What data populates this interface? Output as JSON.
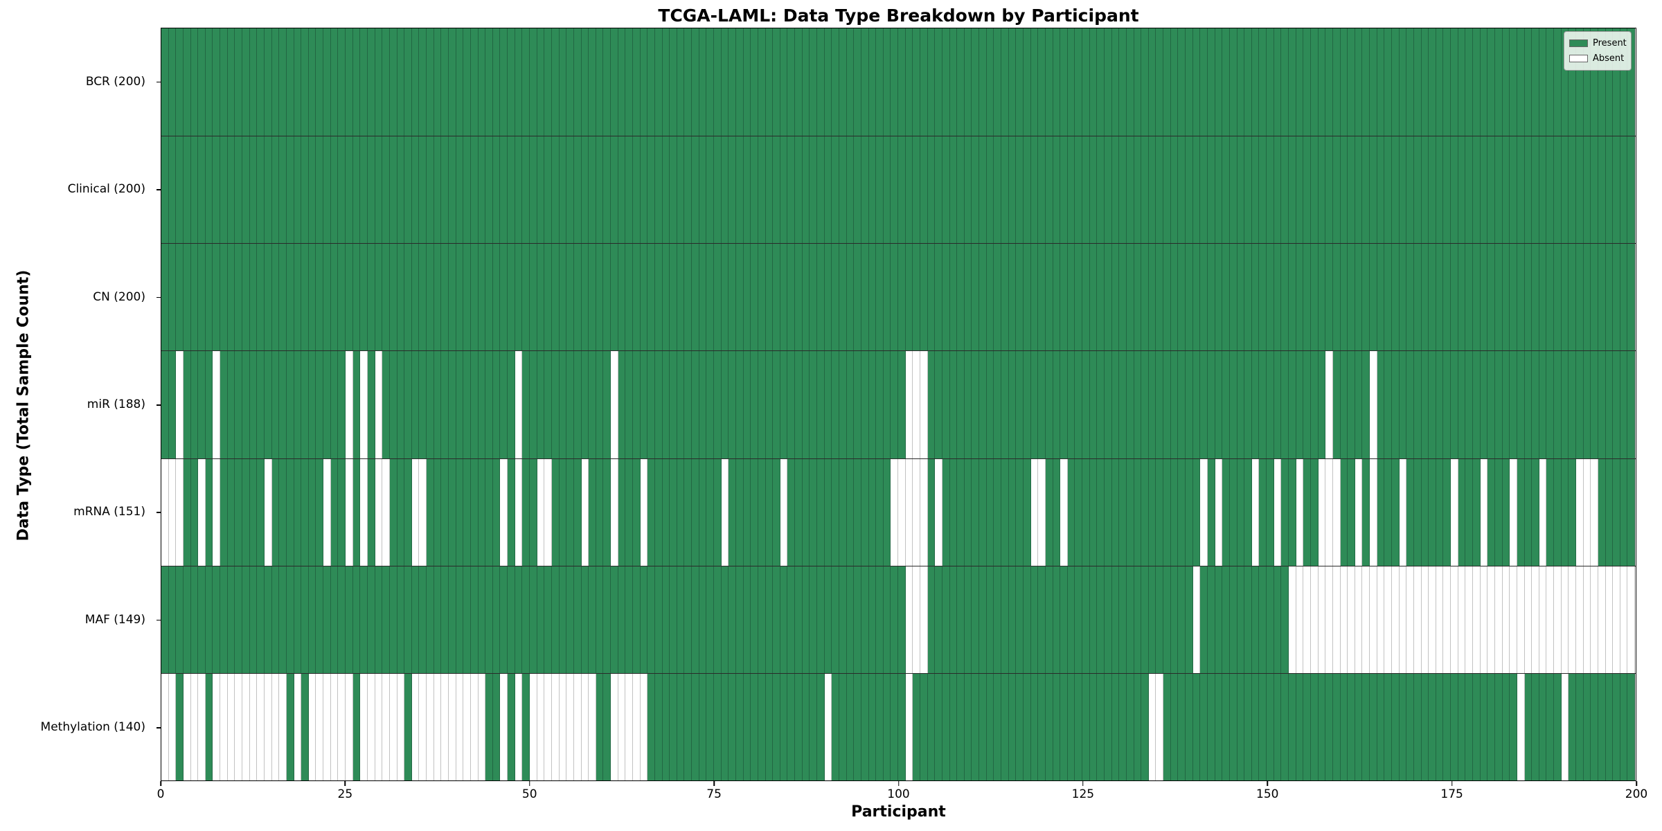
{
  "figure": {
    "title": "TCGA-LAML: Data Type Breakdown by Participant",
    "xlabel": "Participant",
    "ylabel": "Data Type (Total Sample Count)"
  },
  "legend": {
    "entries": [
      {
        "label": "Present",
        "color": "#2e8b57"
      },
      {
        "label": "Absent",
        "color": "#ffffff"
      }
    ]
  },
  "chart_data": {
    "type": "heatmap",
    "title": "TCGA-LAML: Data Type Breakdown by Participant",
    "xlabel": "Participant",
    "ylabel": "Data Type (Total Sample Count)",
    "legend_position": "upper right",
    "grid": true,
    "n_participants": 200,
    "x_range": [
      0,
      200
    ],
    "x_ticks": [
      0,
      25,
      50,
      75,
      100,
      125,
      150,
      175,
      200
    ],
    "present_color": "#2e8b57",
    "absent_color": "#ffffff",
    "present_value": 1,
    "absent_value": 0,
    "rows": [
      {
        "label": "BCR (200)",
        "data_type": "BCR",
        "total": 200,
        "absent_participants": []
      },
      {
        "label": "Clinical (200)",
        "data_type": "Clinical",
        "total": 200,
        "absent_participants": []
      },
      {
        "label": "CN (200)",
        "data_type": "CN",
        "total": 200,
        "absent_participants": []
      },
      {
        "label": "miR (188)",
        "data_type": "miR",
        "total": 188,
        "absent_participants": [
          2,
          7,
          25,
          27,
          29,
          48,
          61,
          101,
          102,
          103,
          158,
          164
        ]
      },
      {
        "label": "mRNA (151)",
        "data_type": "mRNA",
        "total": 151,
        "absent_participants": [
          0,
          1,
          2,
          5,
          7,
          14,
          22,
          25,
          27,
          29,
          30,
          34,
          35,
          46,
          48,
          51,
          52,
          57,
          61,
          65,
          76,
          84,
          99,
          100,
          101,
          102,
          103,
          105,
          118,
          119,
          122,
          141,
          143,
          148,
          151,
          154,
          157,
          158,
          159,
          162,
          164,
          168,
          175,
          179,
          183,
          187,
          192,
          193,
          194
        ]
      },
      {
        "label": "MAF (149)",
        "data_type": "MAF",
        "total": 149,
        "absent_participants": [
          101,
          102,
          103,
          140,
          153,
          154,
          155,
          156,
          157,
          158,
          159,
          160,
          161,
          162,
          163,
          164,
          165,
          166,
          167,
          168,
          169,
          170,
          171,
          172,
          173,
          174,
          175,
          176,
          177,
          178,
          179,
          180,
          181,
          182,
          183,
          184,
          185,
          186,
          187,
          188,
          189,
          190,
          191,
          192,
          193,
          194,
          195,
          196,
          197,
          198,
          199
        ]
      },
      {
        "label": "Methylation (140)",
        "data_type": "Methylation",
        "total": 140,
        "absent_participants": [
          0,
          1,
          3,
          4,
          5,
          7,
          8,
          9,
          10,
          11,
          12,
          13,
          14,
          15,
          16,
          18,
          20,
          21,
          22,
          23,
          24,
          25,
          27,
          28,
          29,
          30,
          31,
          32,
          34,
          35,
          36,
          37,
          38,
          39,
          40,
          41,
          42,
          43,
          46,
          48,
          50,
          51,
          52,
          53,
          54,
          55,
          56,
          57,
          58,
          61,
          62,
          63,
          64,
          65,
          90,
          101,
          134,
          135,
          184,
          190
        ]
      }
    ]
  }
}
